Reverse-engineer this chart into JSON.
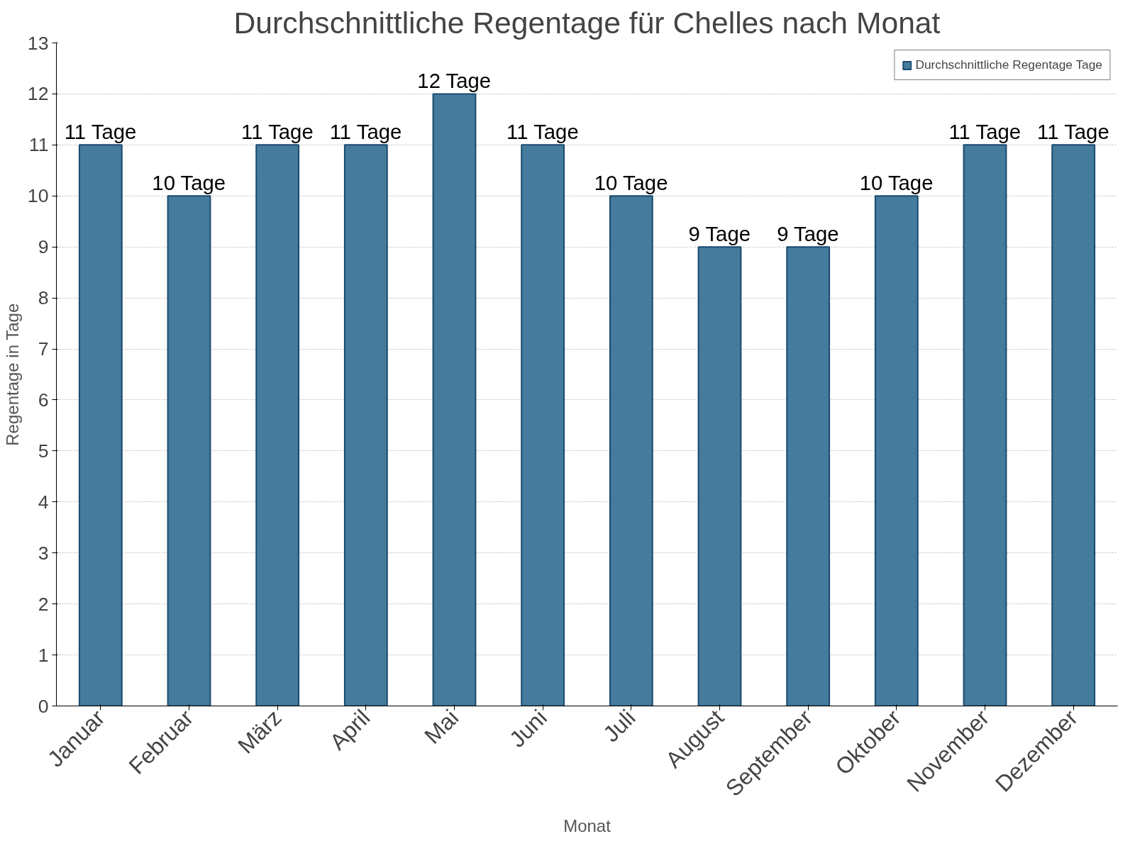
{
  "chart_data": {
    "type": "bar",
    "title": "Durchschnittliche Regentage für Chelles nach Monat",
    "xlabel": "Monat",
    "ylabel": "Regentage in Tage",
    "categories": [
      "Januar",
      "Februar",
      "März",
      "April",
      "Mai",
      "Juni",
      "Juli",
      "August",
      "September",
      "Oktober",
      "November",
      "Dezember"
    ],
    "series": [
      {
        "name": "Durchschnittliche Regentage Tage",
        "color": "#457b9d",
        "values": [
          11,
          10,
          11,
          11,
          12,
          11,
          10,
          9,
          9,
          10,
          11,
          11
        ],
        "value_labels": [
          "11 Tage",
          "10 Tage",
          "11 Tage",
          "11 Tage",
          "12 Tage",
          "11 Tage",
          "10 Tage",
          "9 Tage",
          "9 Tage",
          "10 Tage",
          "11 Tage",
          "11 Tage"
        ]
      }
    ],
    "ylim": [
      0,
      13
    ],
    "yticks": [
      0,
      1,
      2,
      3,
      4,
      5,
      6,
      7,
      8,
      9,
      10,
      11,
      12,
      13
    ],
    "grid": "y",
    "legend": "top right"
  }
}
